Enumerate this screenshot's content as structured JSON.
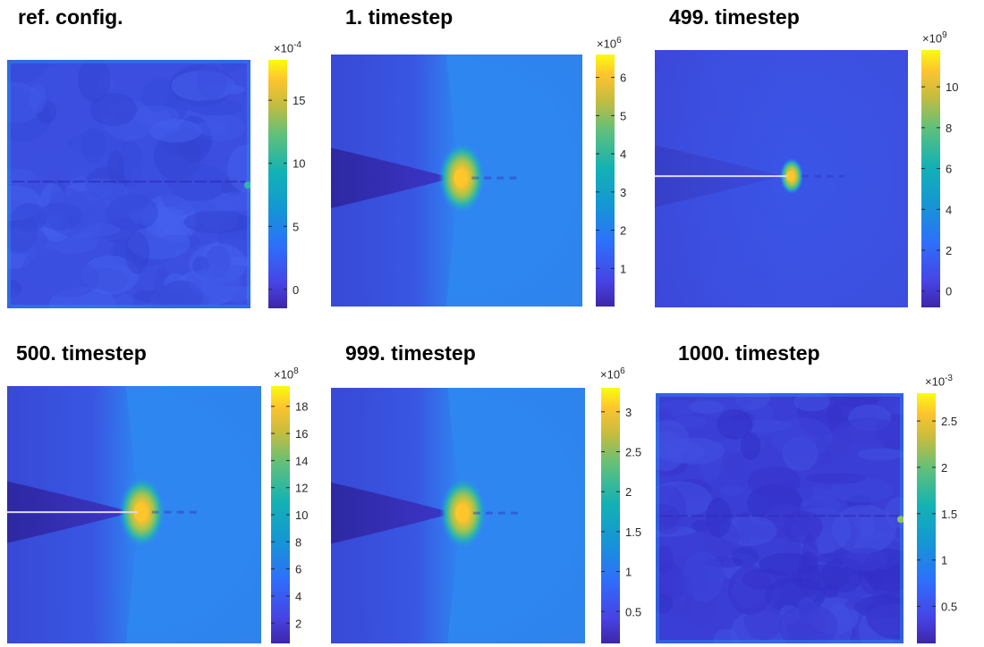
{
  "figure": {
    "colormap": "parula"
  },
  "chart_data": [
    {
      "type": "heatmap",
      "title": "ref. config.",
      "colorbar": {
        "multiplier": "×10",
        "exponent": "-4",
        "range": [
          -1.5,
          18.2
        ],
        "ticks": [
          0,
          5,
          10,
          15
        ],
        "tick_labels": [
          "0",
          "5",
          "10",
          "15"
        ]
      },
      "pattern": "noise"
    },
    {
      "type": "heatmap",
      "title": "1. timestep",
      "colorbar": {
        "multiplier": "×10",
        "exponent": "6",
        "range": [
          0.0,
          6.6
        ],
        "ticks": [
          1,
          2,
          3,
          4,
          5,
          6
        ],
        "tick_labels": [
          "1",
          "2",
          "3",
          "4",
          "5",
          "6"
        ]
      },
      "pattern": "crack-tip"
    },
    {
      "type": "heatmap",
      "title": "499. timestep",
      "colorbar": {
        "multiplier": "×10",
        "exponent": "9",
        "range": [
          -0.8,
          11.8
        ],
        "ticks": [
          0,
          2,
          4,
          6,
          8,
          10
        ],
        "tick_labels": [
          "0",
          "2",
          "4",
          "6",
          "8",
          "10"
        ]
      },
      "pattern": "crack-line"
    },
    {
      "type": "heatmap",
      "title": "500. timestep",
      "colorbar": {
        "multiplier": "×10",
        "exponent": "8",
        "range": [
          0.5,
          19.5
        ],
        "ticks": [
          2,
          4,
          6,
          8,
          10,
          12,
          14,
          16,
          18
        ],
        "tick_labels": [
          "2",
          "4",
          "6",
          "8",
          "10",
          "12",
          "14",
          "16",
          "18"
        ]
      },
      "pattern": "crack-line-tip"
    },
    {
      "type": "heatmap",
      "title": "999. timestep",
      "colorbar": {
        "multiplier": "×10",
        "exponent": "6",
        "range": [
          0.1,
          3.3
        ],
        "ticks": [
          0.5,
          1,
          1.5,
          2,
          2.5,
          3
        ],
        "tick_labels": [
          "0.5",
          "1",
          "1.5",
          "2",
          "2.5",
          "3"
        ]
      },
      "pattern": "crack-tip"
    },
    {
      "type": "heatmap",
      "title": "1000. timestep",
      "colorbar": {
        "multiplier": "×10",
        "exponent": "-3",
        "range": [
          0.1,
          2.8
        ],
        "ticks": [
          0.5,
          1,
          1.5,
          2,
          2.5
        ],
        "tick_labels": [
          "0.5",
          "1",
          "1.5",
          "2",
          "2.5"
        ]
      },
      "pattern": "noise-dark"
    }
  ]
}
